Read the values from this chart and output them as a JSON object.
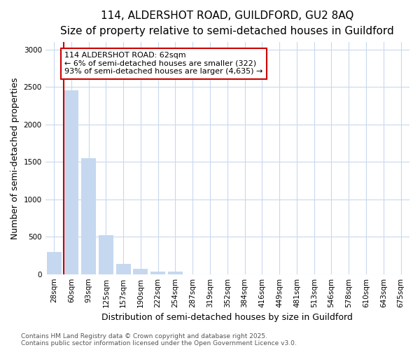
{
  "title1": "114, ALDERSHOT ROAD, GUILDFORD, GU2 8AQ",
  "title2": "Size of property relative to semi-detached houses in Guildford",
  "xlabel": "Distribution of semi-detached houses by size in Guildford",
  "ylabel": "Number of semi-detached properties",
  "categories": [
    "28sqm",
    "60sqm",
    "93sqm",
    "125sqm",
    "157sqm",
    "190sqm",
    "222sqm",
    "254sqm",
    "287sqm",
    "319sqm",
    "352sqm",
    "384sqm",
    "416sqm",
    "449sqm",
    "481sqm",
    "513sqm",
    "546sqm",
    "578sqm",
    "610sqm",
    "643sqm",
    "675sqm"
  ],
  "values": [
    300,
    2460,
    1550,
    520,
    140,
    70,
    35,
    30,
    0,
    0,
    0,
    0,
    0,
    0,
    0,
    0,
    0,
    0,
    0,
    0,
    0
  ],
  "bar_color": "#c5d8f0",
  "marker_bar_index": 1,
  "marker_color": "#cc0000",
  "annotation_text": "114 ALDERSHOT ROAD: 62sqm\n← 6% of semi-detached houses are smaller (322)\n93% of semi-detached houses are larger (4,635) →",
  "annotation_box_color": "#ffffff",
  "annotation_box_edge_color": "#cc0000",
  "ylim": [
    0,
    3100
  ],
  "yticks": [
    0,
    500,
    1000,
    1500,
    2000,
    2500,
    3000
  ],
  "footnote": "Contains HM Land Registry data © Crown copyright and database right 2025.\nContains public sector information licensed under the Open Government Licence v3.0.",
  "bg_color": "#ffffff",
  "plot_bg_color": "#ffffff",
  "grid_color": "#c8d8ee",
  "title_fontsize": 11,
  "subtitle_fontsize": 9.5,
  "axis_label_fontsize": 9,
  "tick_fontsize": 7.5,
  "annotation_fontsize": 8,
  "footnote_fontsize": 6.5
}
